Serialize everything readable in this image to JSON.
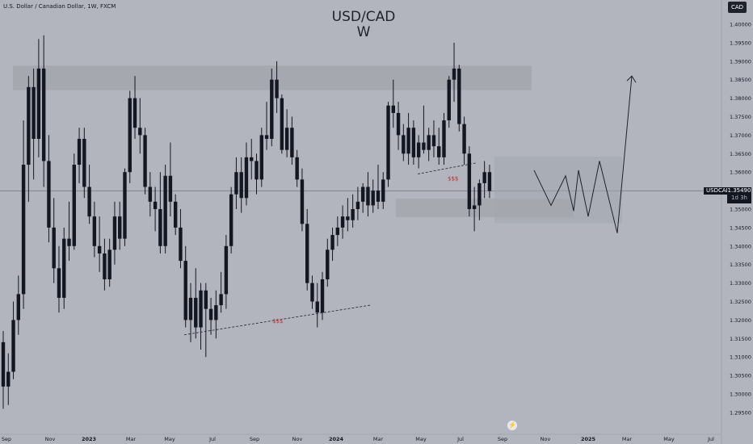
{
  "header": {
    "symbol_description": "U.S. Dollar / Canadian Dollar, 1W, FXCM",
    "title": "USD/CAD",
    "subtitle": "W",
    "currency_badge": "CAD"
  },
  "price_label": {
    "symbol": "USDCAD",
    "price": "1.35490",
    "countdown": "1d 3h"
  },
  "annotations": {
    "liquidity_low": "$$$",
    "liquidity_high": "$$$"
  },
  "colors": {
    "background": "#b2b5be",
    "candle": "#131722",
    "zone": "#a3a6ad",
    "liquidity_text": "#c62828"
  },
  "chart_data": {
    "type": "candlestick",
    "timeframe": "1W",
    "y_ticks": [
      "1.29500",
      "1.30000",
      "1.30500",
      "1.31000",
      "1.31500",
      "1.32000",
      "1.32500",
      "1.33000",
      "1.33500",
      "1.34000",
      "1.34500",
      "1.35000",
      "1.35500",
      "1.36000",
      "1.36500",
      "1.37000",
      "1.37500",
      "1.38000",
      "1.38500",
      "1.39000",
      "1.39500",
      "1.40000"
    ],
    "x_ticks": [
      "Sep",
      "Nov",
      "2023",
      "Mar",
      "May",
      "Jul",
      "Sep",
      "Nov",
      "2024",
      "Mar",
      "May",
      "Jul",
      "Sep",
      "Nov",
      "2025",
      "Mar",
      "May",
      "Jul"
    ],
    "ylim": [
      1.2935,
      1.4035
    ],
    "last_price": 1.3549,
    "candles": [
      [
        1.314,
        1.317,
        1.296,
        1.302
      ],
      [
        1.302,
        1.311,
        1.297,
        1.306
      ],
      [
        1.306,
        1.325,
        1.304,
        1.32
      ],
      [
        1.32,
        1.332,
        1.316,
        1.327
      ],
      [
        1.327,
        1.374,
        1.323,
        1.362
      ],
      [
        1.362,
        1.386,
        1.352,
        1.383
      ],
      [
        1.383,
        1.388,
        1.358,
        1.369
      ],
      [
        1.369,
        1.396,
        1.364,
        1.388
      ],
      [
        1.388,
        1.397,
        1.356,
        1.363
      ],
      [
        1.363,
        1.37,
        1.341,
        1.345
      ],
      [
        1.345,
        1.353,
        1.33,
        1.334
      ],
      [
        1.334,
        1.34,
        1.322,
        1.326
      ],
      [
        1.326,
        1.345,
        1.323,
        1.342
      ],
      [
        1.342,
        1.352,
        1.336,
        1.34
      ],
      [
        1.34,
        1.365,
        1.339,
        1.362
      ],
      [
        1.362,
        1.372,
        1.357,
        1.369
      ],
      [
        1.369,
        1.372,
        1.353,
        1.356
      ],
      [
        1.356,
        1.362,
        1.346,
        1.348
      ],
      [
        1.348,
        1.352,
        1.337,
        1.34
      ],
      [
        1.34,
        1.348,
        1.333,
        1.338
      ],
      [
        1.338,
        1.342,
        1.328,
        1.331
      ],
      [
        1.331,
        1.342,
        1.329,
        1.339
      ],
      [
        1.339,
        1.352,
        1.335,
        1.348
      ],
      [
        1.348,
        1.352,
        1.339,
        1.342
      ],
      [
        1.342,
        1.361,
        1.34,
        1.36
      ],
      [
        1.36,
        1.382,
        1.357,
        1.38
      ],
      [
        1.38,
        1.386,
        1.369,
        1.372
      ],
      [
        1.372,
        1.38,
        1.365,
        1.37
      ],
      [
        1.37,
        1.372,
        1.354,
        1.356
      ],
      [
        1.356,
        1.36,
        1.348,
        1.352
      ],
      [
        1.352,
        1.356,
        1.344,
        1.35
      ],
      [
        1.35,
        1.36,
        1.338,
        1.34
      ],
      [
        1.34,
        1.362,
        1.338,
        1.359
      ],
      [
        1.359,
        1.368,
        1.348,
        1.352
      ],
      [
        1.352,
        1.354,
        1.343,
        1.345
      ],
      [
        1.345,
        1.35,
        1.334,
        1.336
      ],
      [
        1.336,
        1.34,
        1.318,
        1.32
      ],
      [
        1.32,
        1.33,
        1.314,
        1.326
      ],
      [
        1.326,
        1.334,
        1.315,
        1.318
      ],
      [
        1.318,
        1.33,
        1.312,
        1.328
      ],
      [
        1.328,
        1.33,
        1.31,
        1.323
      ],
      [
        1.323,
        1.326,
        1.316,
        1.32
      ],
      [
        1.32,
        1.328,
        1.315,
        1.324
      ],
      [
        1.324,
        1.333,
        1.322,
        1.327
      ],
      [
        1.327,
        1.343,
        1.323,
        1.34
      ],
      [
        1.34,
        1.356,
        1.338,
        1.354
      ],
      [
        1.354,
        1.364,
        1.35,
        1.36
      ],
      [
        1.36,
        1.364,
        1.349,
        1.353
      ],
      [
        1.353,
        1.368,
        1.351,
        1.364
      ],
      [
        1.364,
        1.369,
        1.358,
        1.363
      ],
      [
        1.363,
        1.365,
        1.354,
        1.358
      ],
      [
        1.358,
        1.372,
        1.356,
        1.37
      ],
      [
        1.37,
        1.379,
        1.366,
        1.369
      ],
      [
        1.369,
        1.388,
        1.367,
        1.385
      ],
      [
        1.385,
        1.39,
        1.376,
        1.38
      ],
      [
        1.38,
        1.381,
        1.365,
        1.366
      ],
      [
        1.366,
        1.377,
        1.364,
        1.372
      ],
      [
        1.372,
        1.375,
        1.362,
        1.364
      ],
      [
        1.364,
        1.366,
        1.356,
        1.358
      ],
      [
        1.358,
        1.361,
        1.344,
        1.346
      ],
      [
        1.346,
        1.35,
        1.328,
        1.33
      ],
      [
        1.33,
        1.332,
        1.323,
        1.325
      ],
      [
        1.325,
        1.33,
        1.318,
        1.322
      ],
      [
        1.322,
        1.333,
        1.32,
        1.331
      ],
      [
        1.331,
        1.342,
        1.329,
        1.339
      ],
      [
        1.339,
        1.345,
        1.336,
        1.343
      ],
      [
        1.343,
        1.348,
        1.34,
        1.345
      ],
      [
        1.345,
        1.351,
        1.342,
        1.348
      ],
      [
        1.348,
        1.353,
        1.344,
        1.347
      ],
      [
        1.347,
        1.354,
        1.345,
        1.35
      ],
      [
        1.35,
        1.356,
        1.347,
        1.352
      ],
      [
        1.352,
        1.357,
        1.349,
        1.356
      ],
      [
        1.356,
        1.36,
        1.348,
        1.351
      ],
      [
        1.351,
        1.358,
        1.349,
        1.355
      ],
      [
        1.355,
        1.362,
        1.35,
        1.352
      ],
      [
        1.352,
        1.36,
        1.35,
        1.358
      ],
      [
        1.358,
        1.379,
        1.356,
        1.378
      ],
      [
        1.378,
        1.385,
        1.372,
        1.376
      ],
      [
        1.376,
        1.379,
        1.366,
        1.37
      ],
      [
        1.37,
        1.373,
        1.363,
        1.365
      ],
      [
        1.365,
        1.376,
        1.362,
        1.372
      ],
      [
        1.372,
        1.374,
        1.362,
        1.364
      ],
      [
        1.364,
        1.37,
        1.361,
        1.368
      ],
      [
        1.368,
        1.378,
        1.365,
        1.366
      ],
      [
        1.366,
        1.372,
        1.363,
        1.37
      ],
      [
        1.37,
        1.374,
        1.364,
        1.367
      ],
      [
        1.367,
        1.372,
        1.362,
        1.364
      ],
      [
        1.364,
        1.376,
        1.362,
        1.374
      ],
      [
        1.374,
        1.386,
        1.372,
        1.385
      ],
      [
        1.385,
        1.395,
        1.379,
        1.388
      ],
      [
        1.388,
        1.389,
        1.371,
        1.373
      ],
      [
        1.373,
        1.375,
        1.362,
        1.365
      ],
      [
        1.365,
        1.367,
        1.348,
        1.35
      ],
      [
        1.35,
        1.356,
        1.344,
        1.351
      ],
      [
        1.351,
        1.358,
        1.347,
        1.357
      ],
      [
        1.357,
        1.363,
        1.353,
        1.36
      ],
      [
        1.36,
        1.362,
        1.353,
        1.3549
      ]
    ]
  }
}
